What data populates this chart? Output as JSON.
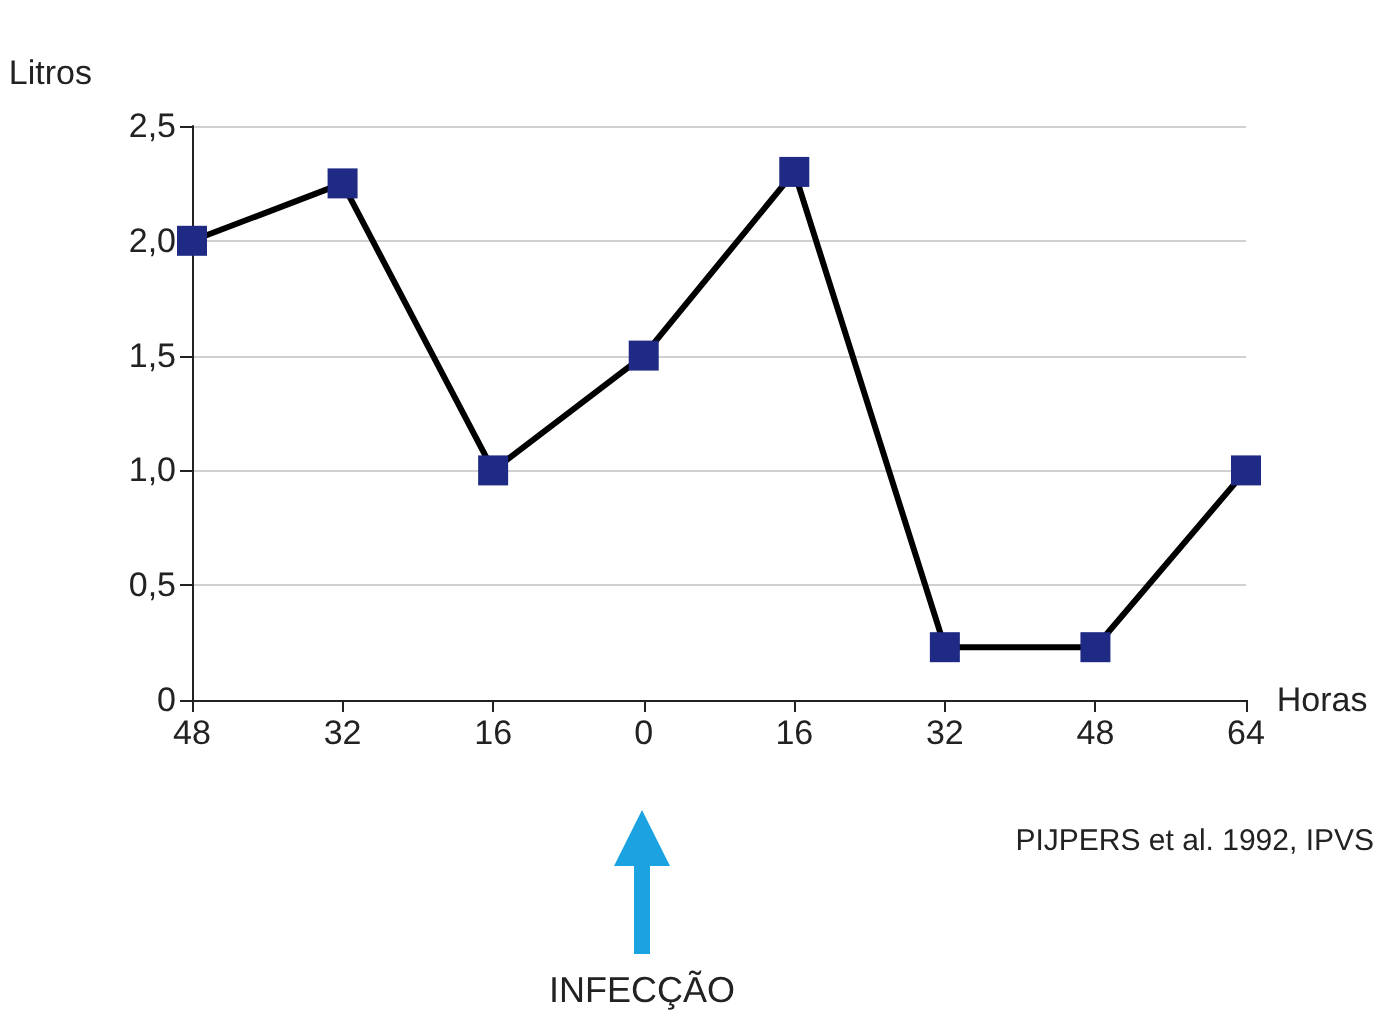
{
  "chart_data": {
    "type": "line",
    "ylabel": "Litros",
    "xlabel": "Horas",
    "categories": [
      "48",
      "32",
      "16",
      "0",
      "16",
      "32",
      "48",
      "64"
    ],
    "series": [
      {
        "color": "#1f2a85",
        "values": [
          2.0,
          2.25,
          1.0,
          1.5,
          2.3,
          0.23,
          0.23,
          1.0
        ]
      }
    ],
    "ylim": [
      0,
      2.5
    ],
    "yticks": [
      {
        "value": 0,
        "label": "0"
      },
      {
        "value": 0.5,
        "label": "0,5"
      },
      {
        "value": 1,
        "label": "1,0"
      },
      {
        "value": 1.5,
        "label": "1,5"
      },
      {
        "value": 2,
        "label": "2,0"
      },
      {
        "value": 2.5,
        "label": "2,5"
      }
    ],
    "grid": "y",
    "marker": "square",
    "line_style": "solid",
    "annotations": [
      "PIJPERS et al. 1992, IPVS",
      "INFECÇÃO"
    ]
  }
}
